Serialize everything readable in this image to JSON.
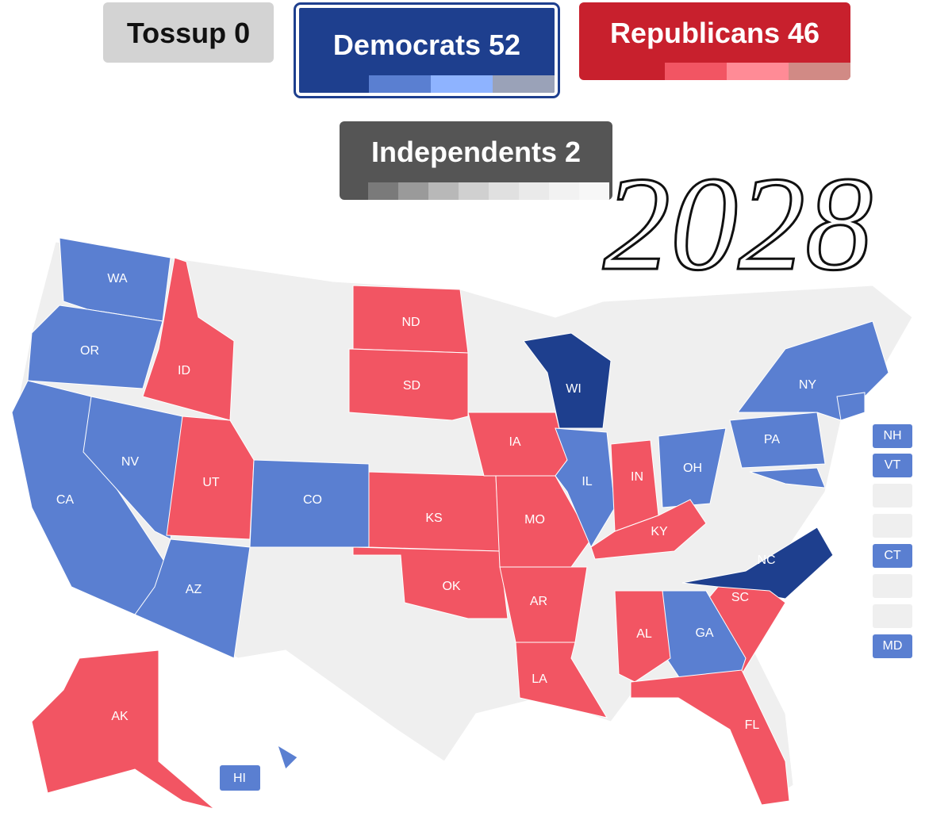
{
  "counters": [
    {
      "label": "Tossup",
      "count": 0,
      "color": "#d3d3d3",
      "text_color": "#111111"
    },
    {
      "label": "Democrats",
      "count": 52,
      "color": "#1e3f8e",
      "text_color": "#ffffff",
      "segments": [
        "#5a7fd1",
        "#8eb3ff",
        "#9aa2b8"
      ]
    },
    {
      "label": "Republicans",
      "count": 46,
      "color": "#c8202d",
      "text_color": "#ffffff",
      "segments": [
        "#f25563",
        "#ff8b96",
        "#d18a85"
      ]
    },
    {
      "label": "Independents",
      "count": 2,
      "color": "#555555",
      "text_color": "#ffffff",
      "segments": [
        "#7a7a7a",
        "#9a9a9a",
        "#b8b8b8",
        "#d0d0d0",
        "#e0e0e0",
        "#eaeaea",
        "#f2f2f2",
        "#f7f7f7"
      ]
    }
  ],
  "annotation": "2028",
  "states": [
    {
      "label": "WA",
      "color": "#5a7fd1"
    },
    {
      "label": "OR",
      "color": "#5a7fd1"
    },
    {
      "label": "CA",
      "color": "#5a7fd1"
    },
    {
      "label": "NV",
      "color": "#5a7fd1"
    },
    {
      "label": "ID",
      "color": "#f25563"
    },
    {
      "label": "UT",
      "color": "#f25563"
    },
    {
      "label": "AZ",
      "color": "#5a7fd1"
    },
    {
      "label": "CO",
      "color": "#5a7fd1"
    },
    {
      "label": "ND",
      "color": "#f25563"
    },
    {
      "label": "SD",
      "color": "#f25563"
    },
    {
      "label": "KS",
      "color": "#f25563"
    },
    {
      "label": "OK",
      "color": "#f25563"
    },
    {
      "label": "IA",
      "color": "#f25563"
    },
    {
      "label": "MO",
      "color": "#f25563"
    },
    {
      "label": "AR",
      "color": "#f25563"
    },
    {
      "label": "LA",
      "color": "#f25563"
    },
    {
      "label": "WI",
      "color": "#1e3f8e"
    },
    {
      "label": "IL",
      "color": "#5a7fd1"
    },
    {
      "label": "IN",
      "color": "#f25563"
    },
    {
      "label": "OH",
      "color": "#5a7fd1"
    },
    {
      "label": "KY",
      "color": "#f25563"
    },
    {
      "label": "NC",
      "color": "#1e3f8e"
    },
    {
      "label": "SC",
      "color": "#f25563"
    },
    {
      "label": "GA",
      "color": "#5a7fd1"
    },
    {
      "label": "AL",
      "color": "#f25563"
    },
    {
      "label": "FL",
      "color": "#f25563"
    },
    {
      "label": "PA",
      "color": "#5a7fd1"
    },
    {
      "label": "NY",
      "color": "#5a7fd1"
    },
    {
      "label": "AK",
      "color": "#f25563"
    },
    {
      "label": "HI",
      "color": "#5a7fd1"
    }
  ],
  "small_states": [
    {
      "label": "NH",
      "color": "#5a7fd1"
    },
    {
      "label": "VT",
      "color": "#5a7fd1"
    },
    {
      "label": "CT",
      "color": "#5a7fd1"
    },
    {
      "label": "MD",
      "color": "#5a7fd1"
    }
  ]
}
